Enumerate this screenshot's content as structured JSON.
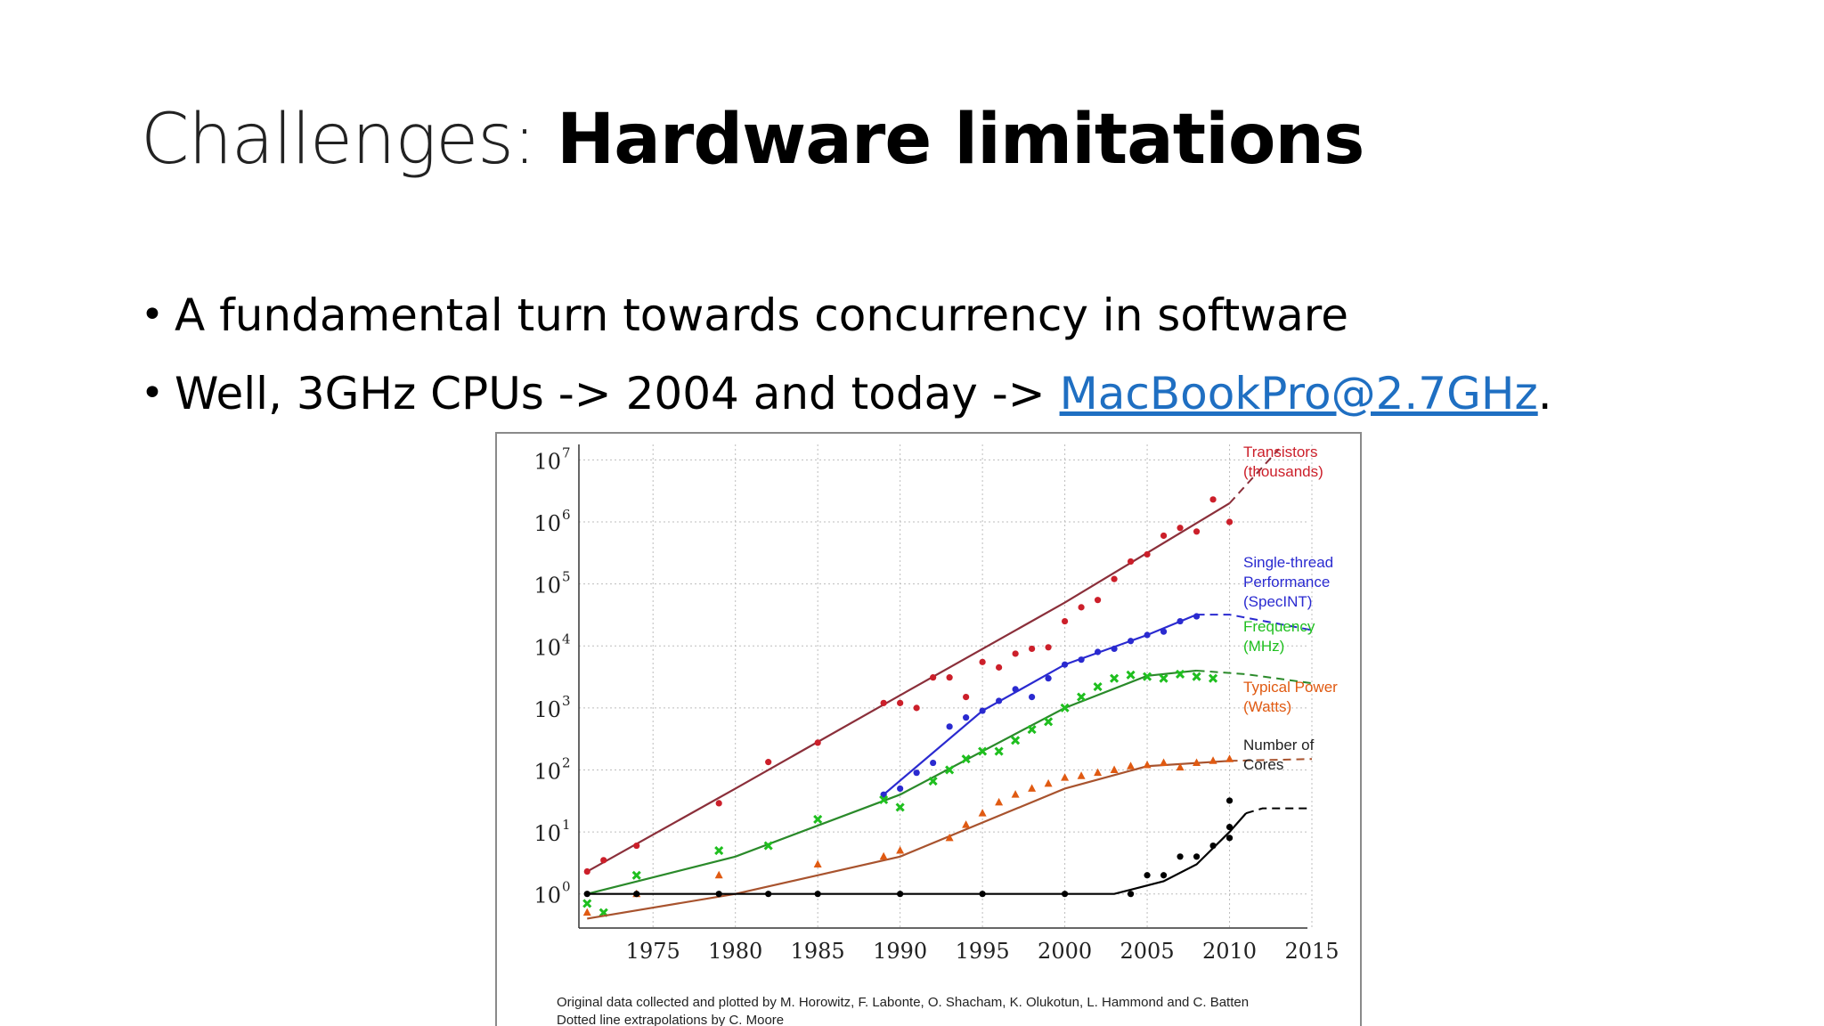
{
  "slide": {
    "title_prefix": "Challenges: ",
    "title_emphasis": "Hardware limitations",
    "bullet1": "A fundamental turn towards concurrency in software",
    "bullet2_text": "Well, 3GHz CPUs ->  2004 and today -> ",
    "bullet2_link": "MacBookPro@2.7GHz",
    "bullet2_end": "."
  },
  "figure": {
    "credit_line1": "Original data collected and plotted by M. Horowitz, F. Labonte, O. Shacham, K. Olukotun, L. Hammond and C. Batten",
    "credit_line2": "Dotted line extrapolations by C. Moore"
  },
  "chart_data": {
    "type": "scatter",
    "title": "",
    "xlabel": "",
    "ylabel": "",
    "x_ticks": [
      1975,
      1980,
      1985,
      1990,
      1995,
      2000,
      2005,
      2010,
      2015
    ],
    "y_ticks": [
      "10^0",
      "10^1",
      "10^2",
      "10^3",
      "10^4",
      "10^5",
      "10^6",
      "10^7"
    ],
    "xlim": [
      1970,
      2017
    ],
    "ylim_log10": [
      -0.5,
      7.2
    ],
    "yscale": "log",
    "grid": true,
    "legend_placement": "right",
    "series": [
      {
        "name_lines": [
          "Transistors",
          "(thousands)"
        ],
        "color": "#cc1f2a",
        "trend_color": "#8b2f3a",
        "marker": "circle",
        "points": [
          [
            1971,
            2.3
          ],
          [
            1972,
            3.5
          ],
          [
            1974,
            6
          ],
          [
            1979,
            29
          ],
          [
            1982,
            134
          ],
          [
            1985,
            275
          ],
          [
            1989,
            1200
          ],
          [
            1990,
            1200
          ],
          [
            1991,
            1000
          ],
          [
            1992,
            3100
          ],
          [
            1993,
            3100
          ],
          [
            1994,
            1500
          ],
          [
            1995,
            5500
          ],
          [
            1996,
            4500
          ],
          [
            1997,
            7500
          ],
          [
            1998,
            9000
          ],
          [
            1999,
            9500
          ],
          [
            2000,
            25000
          ],
          [
            2001,
            42000
          ],
          [
            2002,
            55000
          ],
          [
            2003,
            120000
          ],
          [
            2004,
            230000
          ],
          [
            2005,
            300000
          ],
          [
            2006,
            600000
          ],
          [
            2007,
            800000
          ],
          [
            2008,
            700000
          ],
          [
            2009,
            2300000
          ],
          [
            2010,
            1000000
          ]
        ],
        "trend": [
          [
            1971,
            2.3
          ],
          [
            1980,
            50
          ],
          [
            1990,
            1600
          ],
          [
            2000,
            50000
          ],
          [
            2010,
            2000000
          ]
        ],
        "extrapolation": [
          [
            2010,
            2000000
          ],
          [
            2013,
            15000000
          ]
        ]
      },
      {
        "name_lines": [
          "Single-thread",
          "Performance",
          "(SpecINT)"
        ],
        "color": "#2a2ad0",
        "trend_color": "#2a2ad0",
        "marker": "circle",
        "points": [
          [
            1989,
            40
          ],
          [
            1990,
            50
          ],
          [
            1991,
            90
          ],
          [
            1992,
            130
          ],
          [
            1993,
            500
          ],
          [
            1994,
            700
          ],
          [
            1995,
            900
          ],
          [
            1996,
            1300
          ],
          [
            1997,
            2000
          ],
          [
            1998,
            1500
          ],
          [
            1999,
            3000
          ],
          [
            2000,
            5000
          ],
          [
            2001,
            6000
          ],
          [
            2002,
            8000
          ],
          [
            2003,
            9000
          ],
          [
            2004,
            12000
          ],
          [
            2005,
            15000
          ],
          [
            2006,
            17000
          ],
          [
            2007,
            25000
          ],
          [
            2008,
            30000
          ]
        ],
        "trend": [
          [
            1989,
            40
          ],
          [
            1995,
            900
          ],
          [
            2000,
            5000
          ],
          [
            2005,
            15000
          ],
          [
            2008,
            32000
          ]
        ],
        "extrapolation": [
          [
            2008,
            32000
          ],
          [
            2010,
            32000
          ],
          [
            2015,
            18000
          ]
        ]
      },
      {
        "name_lines": [
          "Frequency",
          "(MHz)"
        ],
        "color": "#1fbf1f",
        "trend_color": "#2a8a2a",
        "marker": "x",
        "points": [
          [
            1971,
            0.7
          ],
          [
            1972,
            0.5
          ],
          [
            1974,
            2
          ],
          [
            1979,
            5
          ],
          [
            1982,
            6
          ],
          [
            1985,
            16
          ],
          [
            1989,
            33
          ],
          [
            1990,
            25
          ],
          [
            1992,
            66
          ],
          [
            1993,
            100
          ],
          [
            1994,
            150
          ],
          [
            1995,
            200
          ],
          [
            1996,
            200
          ],
          [
            1997,
            300
          ],
          [
            1998,
            450
          ],
          [
            1999,
            600
          ],
          [
            2000,
            1000
          ],
          [
            2001,
            1500
          ],
          [
            2002,
            2200
          ],
          [
            2003,
            3000
          ],
          [
            2004,
            3400
          ],
          [
            2005,
            3200
          ],
          [
            2006,
            3000
          ],
          [
            2007,
            3500
          ],
          [
            2008,
            3200
          ],
          [
            2009,
            3000
          ]
        ],
        "trend": [
          [
            1971,
            1
          ],
          [
            1980,
            4
          ],
          [
            1990,
            40
          ],
          [
            2000,
            1000
          ],
          [
            2005,
            3300
          ],
          [
            2008,
            4000
          ]
        ],
        "extrapolation": [
          [
            2008,
            4000
          ],
          [
            2011,
            3500
          ],
          [
            2015,
            2500
          ]
        ]
      },
      {
        "name_lines": [
          "Typical Power",
          "(Watts)"
        ],
        "color": "#e05a12",
        "trend_color": "#a8532e",
        "marker": "triangle",
        "points": [
          [
            1971,
            0.5
          ],
          [
            1974,
            1
          ],
          [
            1979,
            2
          ],
          [
            1985,
            3
          ],
          [
            1989,
            4
          ],
          [
            1990,
            5
          ],
          [
            1993,
            8
          ],
          [
            1994,
            13
          ],
          [
            1995,
            20
          ],
          [
            1996,
            30
          ],
          [
            1997,
            40
          ],
          [
            1998,
            50
          ],
          [
            1999,
            60
          ],
          [
            2000,
            75
          ],
          [
            2001,
            80
          ],
          [
            2002,
            90
          ],
          [
            2003,
            100
          ],
          [
            2004,
            115
          ],
          [
            2005,
            120
          ],
          [
            2006,
            130
          ],
          [
            2007,
            110
          ],
          [
            2008,
            130
          ],
          [
            2009,
            140
          ],
          [
            2010,
            150
          ]
        ],
        "trend": [
          [
            1971,
            0.4
          ],
          [
            1980,
            1
          ],
          [
            1990,
            4
          ],
          [
            2000,
            50
          ],
          [
            2005,
            115
          ],
          [
            2010,
            140
          ]
        ],
        "extrapolation": [
          [
            2010,
            140
          ],
          [
            2015,
            150
          ]
        ]
      },
      {
        "name_lines": [
          "Number of",
          "Cores"
        ],
        "color": "#000000",
        "trend_color": "#000000",
        "marker": "circle",
        "points": [
          [
            1971,
            1
          ],
          [
            1974,
            1
          ],
          [
            1979,
            1
          ],
          [
            1982,
            1
          ],
          [
            1985,
            1
          ],
          [
            1990,
            1
          ],
          [
            1995,
            1
          ],
          [
            2000,
            1
          ],
          [
            2004,
            1
          ],
          [
            2005,
            2
          ],
          [
            2006,
            2
          ],
          [
            2007,
            4
          ],
          [
            2008,
            4
          ],
          [
            2009,
            6
          ],
          [
            2010,
            8
          ],
          [
            2010,
            12
          ],
          [
            2010,
            32
          ]
        ],
        "trend": [
          [
            1971,
            1
          ],
          [
            2003,
            1
          ],
          [
            2006,
            1.6
          ],
          [
            2008,
            3
          ],
          [
            2010,
            10
          ],
          [
            2011,
            20
          ]
        ],
        "extrapolation": [
          [
            2011,
            20
          ],
          [
            2012,
            24
          ],
          [
            2015,
            24
          ]
        ]
      }
    ]
  }
}
